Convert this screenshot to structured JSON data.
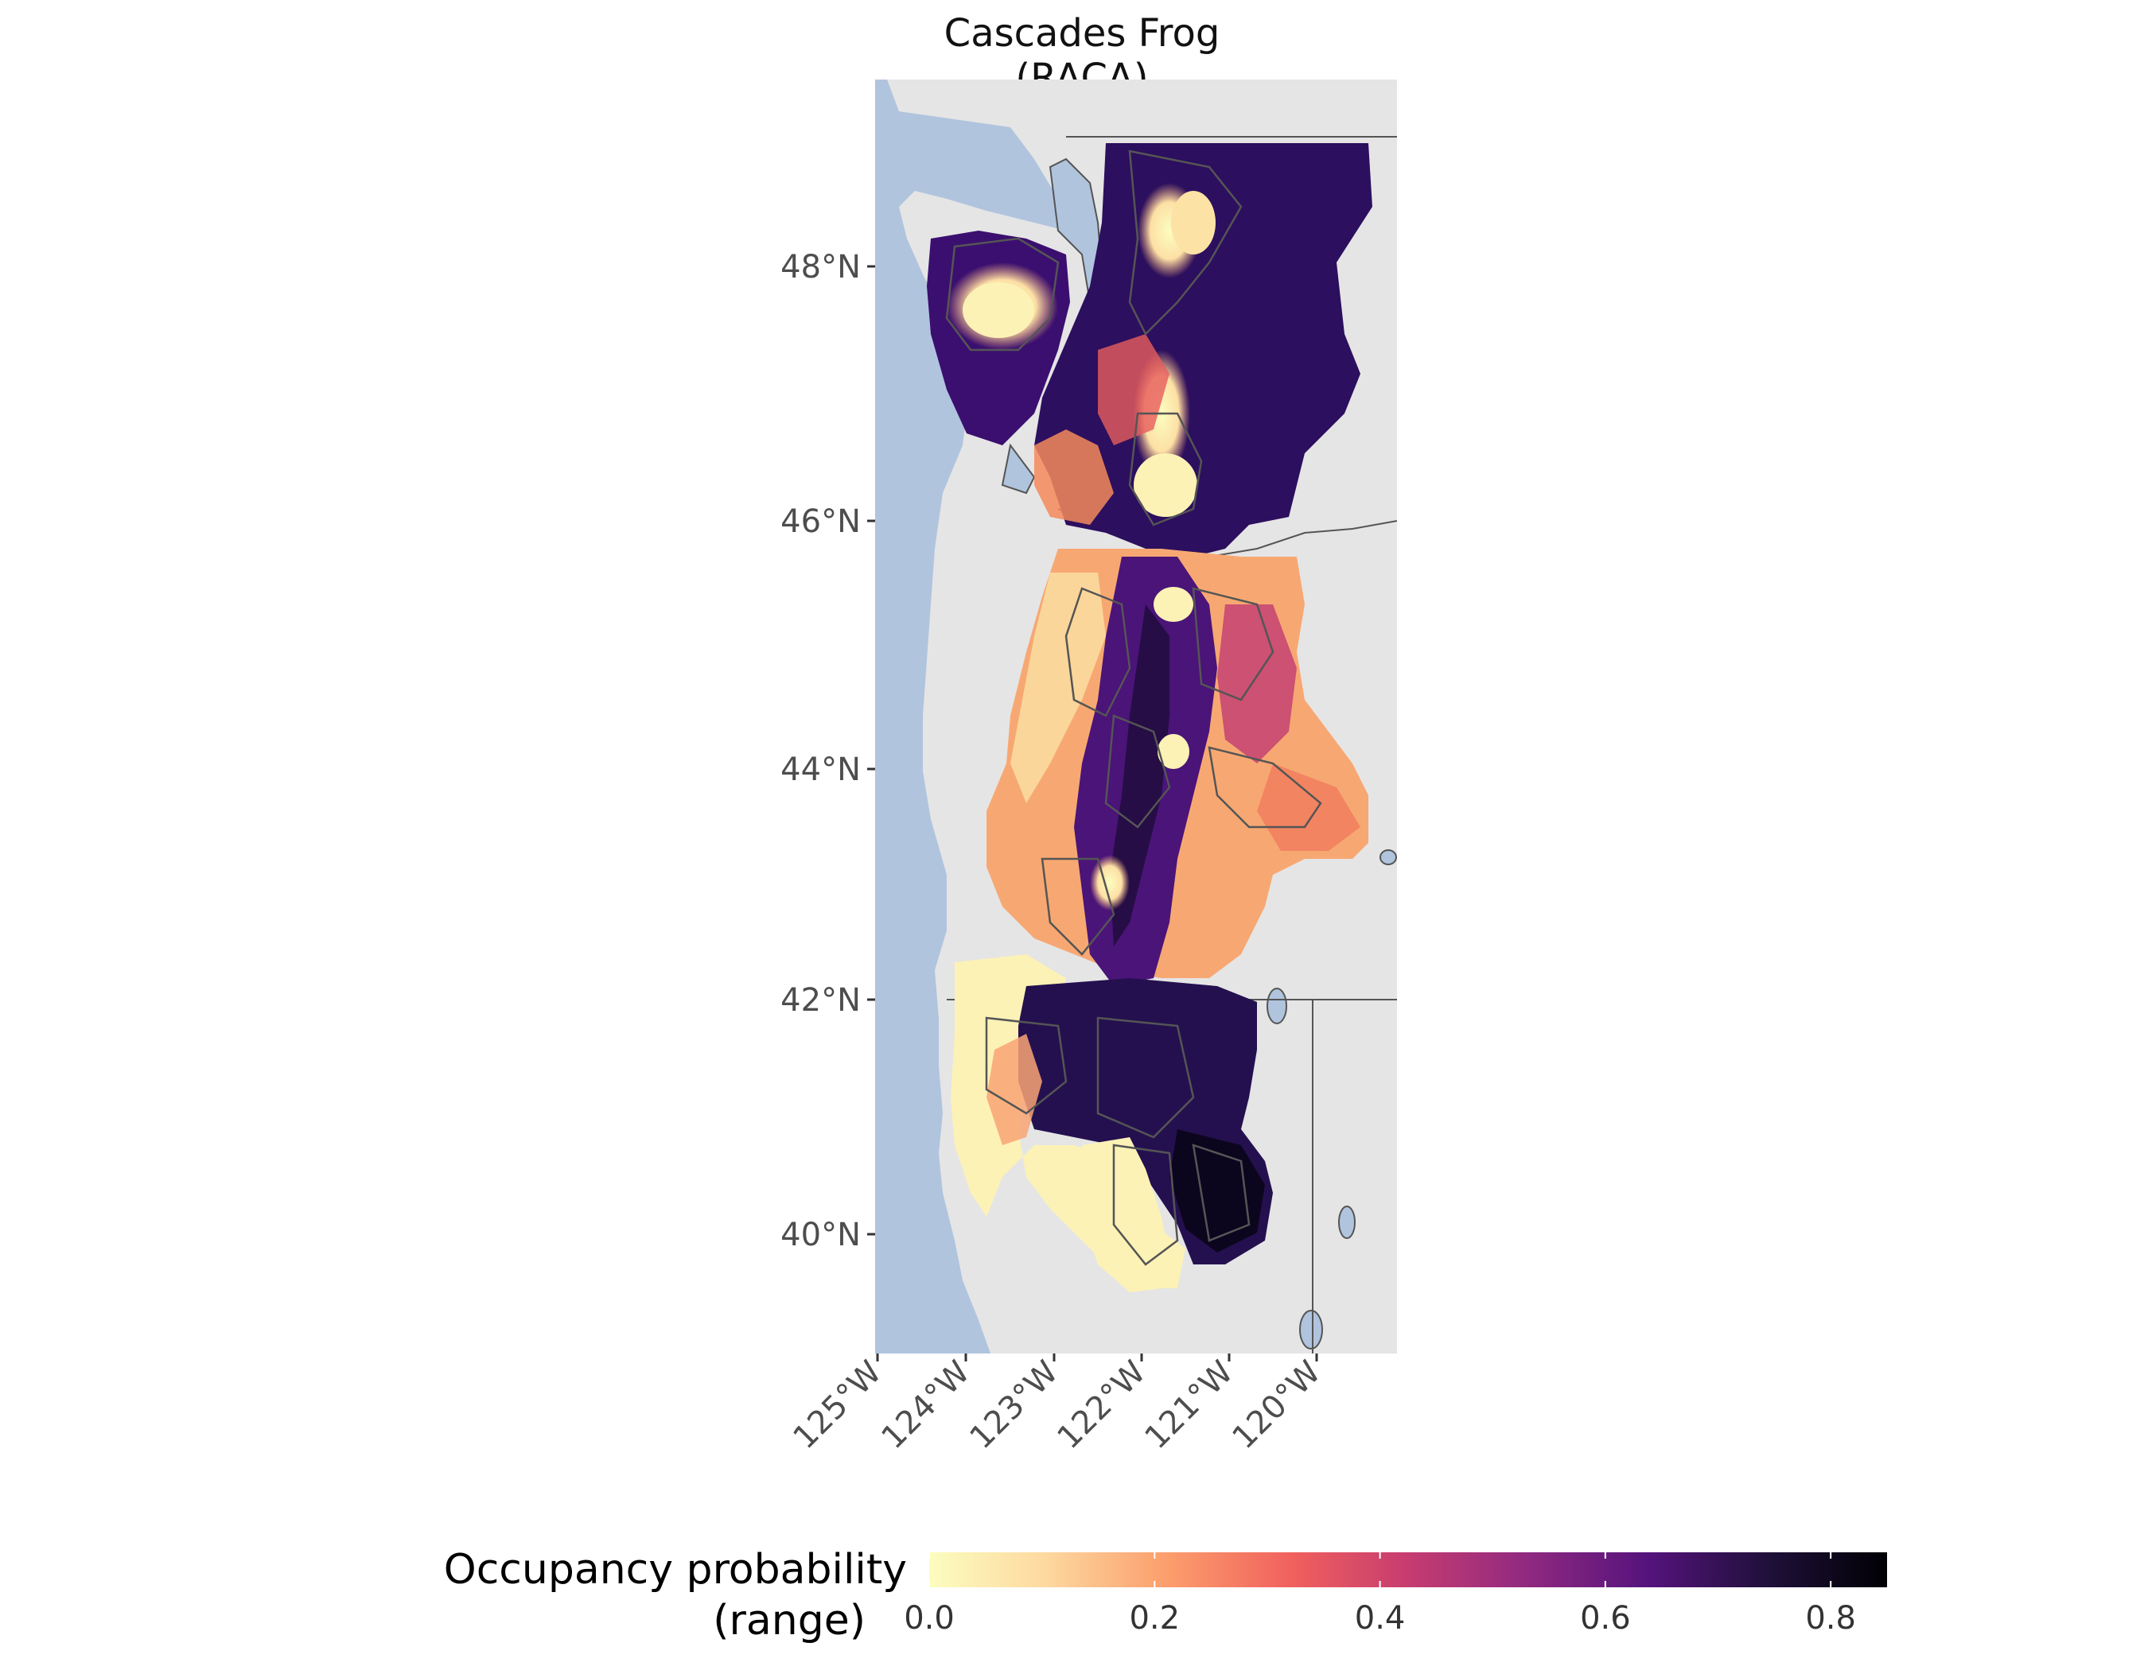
{
  "title": "Cascades Frog (RACA)",
  "axes": {
    "lat_ticks": [
      "48°N",
      "46°N",
      "44°N",
      "42°N",
      "40°N"
    ],
    "lon_ticks": [
      "125°W",
      "124°W",
      "123°W",
      "122°W",
      "121°W",
      "120°W"
    ]
  },
  "legend": {
    "title_line1": "Occupancy probability",
    "title_line2": "(range)",
    "ticks": [
      "0.0",
      "0.2",
      "0.4",
      "0.6",
      "0.8"
    ],
    "range": [
      0.0,
      0.85
    ],
    "tick_values": [
      0.0,
      0.2,
      0.4,
      0.6,
      0.8
    ],
    "palette": [
      "#fcfdbf",
      "#fdbe85",
      "#fc8961",
      "#e95462",
      "#b73779",
      "#8c2981",
      "#51127c",
      "#231151",
      "#000004"
    ]
  },
  "colors": {
    "ocean": "#b0c4de",
    "land": "#e5e5e5",
    "boundary": "#555555"
  }
}
